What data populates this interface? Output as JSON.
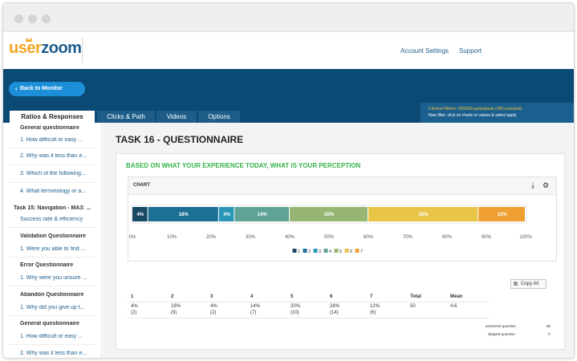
{
  "app": {
    "logo": {
      "part1": "user",
      "part2": "zoom"
    },
    "nav": {
      "account_settings": "Account Settings",
      "support": "Support"
    }
  },
  "toolbar": {
    "back_label": "Back to Monitor",
    "filter_line1": "0 Active Filter/s: 200/200 participants (189 excluded)",
    "filter_line2": "New filter: click on charts or values & select apply"
  },
  "tabs": [
    {
      "label": "Ratios & Responses",
      "active": true
    },
    {
      "label": "Clicks & Path",
      "active": false
    },
    {
      "label": "Videos",
      "active": false
    },
    {
      "label": "Options",
      "active": false
    }
  ],
  "sidebar": {
    "items": [
      {
        "label": "General questionnaire",
        "type": "group"
      },
      {
        "label": "1. How difficult or easy ...",
        "type": "q"
      },
      {
        "label": "2. Why was it less than e...",
        "type": "q"
      },
      {
        "label": "3. Which of the following...",
        "type": "q"
      },
      {
        "label": "4. What terminology or a...",
        "type": "q"
      },
      {
        "label": "Task 15: Navigation - MA3: ...",
        "type": "group"
      },
      {
        "label": "Success rate & efficiency",
        "type": "q"
      },
      {
        "label": "Validation Questionnaire",
        "type": "group"
      },
      {
        "label": "1. Were you able to find ...",
        "type": "q"
      },
      {
        "label": "Error Questionnaire",
        "type": "group"
      },
      {
        "label": "1. Why were you unsure ...",
        "type": "q"
      },
      {
        "label": "Abandon Questionnaire",
        "type": "group"
      },
      {
        "label": "1. Why did you give up t...",
        "type": "q"
      },
      {
        "label": "General questionnaire",
        "type": "group"
      },
      {
        "label": "1. How difficult or easy ...",
        "type": "q"
      },
      {
        "label": "2. Why was it less than e...",
        "type": "q"
      }
    ]
  },
  "main": {
    "task_title": "TASK 16 - QUESTIONNAIRE",
    "question_title": "BASED ON WHAT YOUR EXPERIENCE TODAY, WHAT IS YOUR PERCEPTION",
    "chart_label": "CHART",
    "icons": {
      "download": "download-icon",
      "settings": "gear-icon"
    },
    "copy_all": "Copy All",
    "table": {
      "headers": [
        "1",
        "2",
        "3",
        "4",
        "5",
        "6",
        "7",
        "Total",
        "Mean"
      ],
      "row1": [
        "4%",
        "18%",
        "4%",
        "14%",
        "20%",
        "28%",
        "12%",
        "50",
        "4.6"
      ],
      "row2": [
        "(2)",
        "(9)",
        "(2)",
        "(7)",
        "(10)",
        "(14)",
        "(6)",
        "",
        ""
      ]
    },
    "footer": [
      {
        "label": "answered question",
        "value": "50"
      },
      {
        "label": "skipped question",
        "value": "0"
      }
    ]
  },
  "chart_data": {
    "type": "bar",
    "orientation": "horizontal-stacked",
    "categories": [
      "1",
      "2",
      "3",
      "4",
      "5",
      "6",
      "7"
    ],
    "values": [
      4,
      18,
      4,
      14,
      20,
      28,
      12
    ],
    "labels": [
      "4%",
      "18%",
      "4%",
      "14%",
      "20%",
      "28%",
      "12%"
    ],
    "colors": [
      "#184a66",
      "#1e6f94",
      "#2a97b7",
      "#5fa397",
      "#98b673",
      "#e8c447",
      "#f0a032"
    ],
    "xlim": [
      0,
      100
    ],
    "xticks": [
      "0%",
      "10%",
      "20%",
      "30%",
      "40%",
      "50%",
      "60%",
      "70%",
      "80%",
      "90%",
      "100%"
    ],
    "legend": [
      "1",
      "2",
      "3",
      "4",
      "5",
      "6",
      "7"
    ],
    "legend_position": "bottom"
  }
}
